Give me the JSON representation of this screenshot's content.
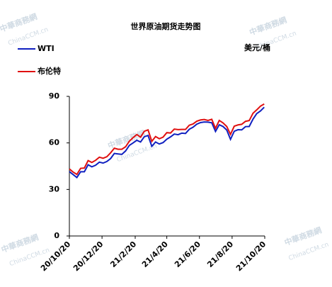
{
  "chart_data": {
    "type": "line",
    "title": "世界原油期货走势图",
    "y_unit": "美元/桶",
    "watermark": "中華商務網",
    "watermark_url": "ChinaCCM.cn",
    "x": [
      "20/10/20",
      "20/10/27",
      "20/11/3",
      "20/11/10",
      "20/11/17",
      "20/11/24",
      "20/12/1",
      "20/12/8",
      "20/12/15",
      "20/12/22",
      "20/12/29",
      "21/1/5",
      "21/1/12",
      "21/1/19",
      "21/1/26",
      "21/2/2",
      "21/2/9",
      "21/2/16",
      "21/2/23",
      "21/3/2",
      "21/3/9",
      "21/3/16",
      "21/3/23",
      "21/3/30",
      "21/4/6",
      "21/4/13",
      "21/4/20",
      "21/4/27",
      "21/5/4",
      "21/5/11",
      "21/5/18",
      "21/5/25",
      "21/6/1",
      "21/6/8",
      "21/6/15",
      "21/6/22",
      "21/6/29",
      "21/7/6",
      "21/7/13",
      "21/7/20",
      "21/7/27",
      "21/8/3",
      "21/8/10",
      "21/8/17",
      "21/8/24",
      "21/8/31",
      "21/9/7",
      "21/9/14",
      "21/9/21",
      "21/9/28",
      "21/10/5",
      "21/10/12",
      "21/10/19"
    ],
    "series": [
      {
        "name": "WTI",
        "color": "#1020c0",
        "values": [
          41.5,
          39.6,
          37.7,
          41.4,
          41.4,
          45.9,
          44.6,
          45.6,
          47.6,
          47.0,
          48.0,
          49.9,
          53.2,
          52.9,
          52.6,
          54.8,
          58.4,
          60.0,
          61.7,
          60.6,
          64.0,
          64.8,
          57.8,
          60.6,
          59.3,
          60.2,
          62.4,
          63.9,
          65.7,
          65.3,
          66.3,
          66.1,
          68.8,
          70.1,
          72.1,
          73.1,
          73.5,
          73.4,
          73.0,
          67.4,
          71.7,
          70.6,
          68.3,
          62.3,
          67.5,
          68.5,
          68.4,
          70.5,
          70.6,
          75.3,
          78.9,
          80.6,
          83.0
        ]
      },
      {
        "name": "布伦特",
        "color": "#e01010",
        "values": [
          43.2,
          41.2,
          39.7,
          43.6,
          43.8,
          48.6,
          47.4,
          48.8,
          50.8,
          50.1,
          51.1,
          53.6,
          56.6,
          55.9,
          55.9,
          57.5,
          61.1,
          63.4,
          65.4,
          63.7,
          67.5,
          68.4,
          61.0,
          64.1,
          62.7,
          63.7,
          66.6,
          66.4,
          68.9,
          68.6,
          68.7,
          68.7,
          71.4,
          72.2,
          74.0,
          74.8,
          75.1,
          74.5,
          75.2,
          69.4,
          74.5,
          72.9,
          70.6,
          65.5,
          70.8,
          71.6,
          72.0,
          73.9,
          74.4,
          79.1,
          81.3,
          83.7,
          85.1
        ]
      }
    ],
    "xlim": [
      "20/10/20",
      "21/10/20"
    ],
    "xticks": [
      "20/10/20",
      "20/12/20",
      "21/2/20",
      "21/4/20",
      "21/6/20",
      "21/8/20",
      "21/10/20"
    ],
    "ylim": [
      0,
      90
    ],
    "yticks": [
      0,
      30,
      60,
      90
    ]
  }
}
